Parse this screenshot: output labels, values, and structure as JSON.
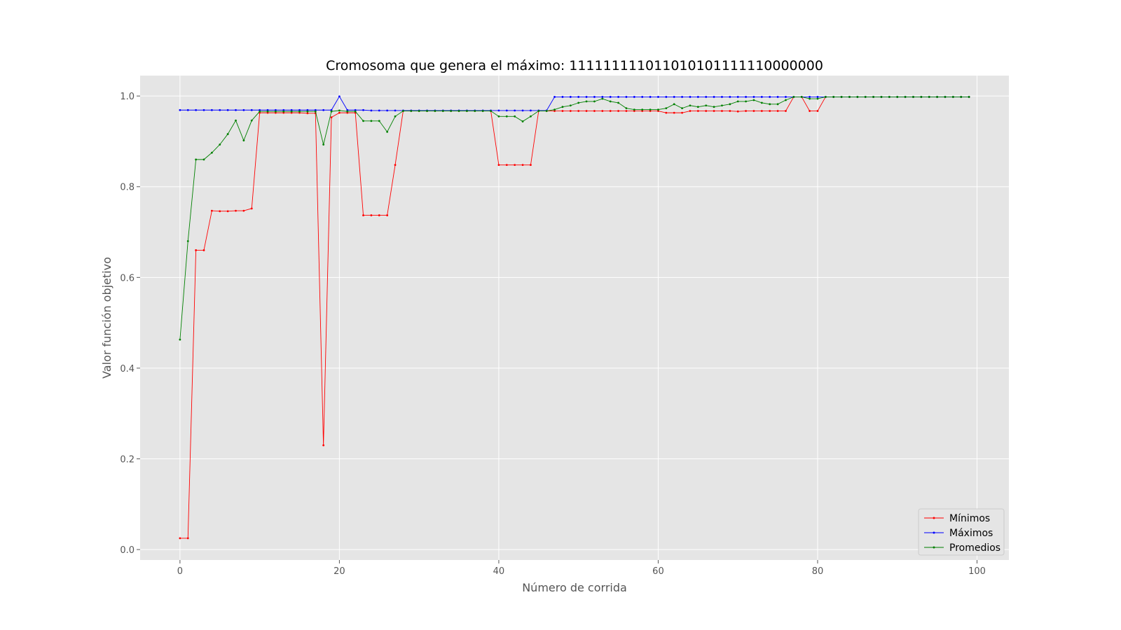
{
  "chart_data": {
    "type": "line",
    "title": "Cromosoma que genera el máximo: 111111111011010101111110000000",
    "xlabel": "Número de corrida",
    "ylabel": "Valor función objetivo",
    "xlim": [
      -5,
      104
    ],
    "ylim": [
      -0.023,
      1.045
    ],
    "x_ticks": [
      0,
      20,
      40,
      60,
      80,
      100
    ],
    "y_ticks": [
      0.0,
      0.2,
      0.4,
      0.6,
      0.8,
      1.0
    ],
    "x_tick_labels": [
      "0",
      "20",
      "40",
      "60",
      "80",
      "100"
    ],
    "y_tick_labels": [
      "0.0",
      "0.2",
      "0.4",
      "0.6",
      "0.8",
      "1.0"
    ],
    "grid": true,
    "legend_position": "bottom-right",
    "series": [
      {
        "name": "Mínimos",
        "color": "#ff0000",
        "values": [
          0.025,
          0.025,
          0.66,
          0.66,
          0.747,
          0.746,
          0.746,
          0.747,
          0.747,
          0.752,
          0.963,
          0.963,
          0.963,
          0.963,
          0.963,
          0.963,
          0.962,
          0.962,
          0.23,
          0.953,
          0.963,
          0.963,
          0.963,
          0.737,
          0.737,
          0.737,
          0.737,
          0.848,
          0.967,
          0.967,
          0.967,
          0.967,
          0.967,
          0.967,
          0.967,
          0.967,
          0.967,
          0.967,
          0.967,
          0.967,
          0.848,
          0.848,
          0.848,
          0.848,
          0.848,
          0.967,
          0.967,
          0.967,
          0.967,
          0.967,
          0.967,
          0.967,
          0.967,
          0.967,
          0.967,
          0.967,
          0.967,
          0.967,
          0.967,
          0.967,
          0.967,
          0.963,
          0.963,
          0.963,
          0.967,
          0.967,
          0.967,
          0.967,
          0.967,
          0.967,
          0.966,
          0.967,
          0.967,
          0.967,
          0.967,
          0.967,
          0.967,
          0.998,
          0.998,
          0.967,
          0.967,
          0.998,
          0.998,
          0.998,
          0.998,
          0.998,
          0.998,
          0.998,
          0.998,
          0.998,
          0.998,
          0.998,
          0.998,
          0.998,
          0.998,
          0.998,
          0.998,
          0.998,
          0.998,
          0.998
        ]
      },
      {
        "name": "Máximos",
        "color": "#0000ff",
        "values": [
          0.969,
          0.969,
          0.969,
          0.969,
          0.969,
          0.969,
          0.969,
          0.969,
          0.969,
          0.969,
          0.969,
          0.969,
          0.969,
          0.969,
          0.969,
          0.969,
          0.969,
          0.969,
          0.969,
          0.969,
          0.999,
          0.969,
          0.969,
          0.969,
          0.968,
          0.968,
          0.968,
          0.968,
          0.968,
          0.968,
          0.968,
          0.968,
          0.968,
          0.968,
          0.968,
          0.968,
          0.968,
          0.968,
          0.968,
          0.968,
          0.968,
          0.968,
          0.968,
          0.968,
          0.968,
          0.968,
          0.968,
          0.998,
          0.998,
          0.998,
          0.998,
          0.998,
          0.998,
          0.998,
          0.998,
          0.998,
          0.998,
          0.998,
          0.998,
          0.998,
          0.998,
          0.998,
          0.998,
          0.998,
          0.998,
          0.998,
          0.998,
          0.998,
          0.998,
          0.998,
          0.998,
          0.998,
          0.998,
          0.998,
          0.998,
          0.998,
          0.998,
          0.998,
          0.998,
          0.998,
          0.998,
          0.998,
          0.998,
          0.998,
          0.998,
          0.998,
          0.998,
          0.998,
          0.998,
          0.998,
          0.998,
          0.998,
          0.998,
          0.998,
          0.998,
          0.998,
          0.998,
          0.998,
          0.998,
          0.998
        ]
      },
      {
        "name": "Promedios",
        "color": "#008000",
        "values": [
          0.463,
          0.68,
          0.86,
          0.86,
          0.875,
          0.893,
          0.916,
          0.946,
          0.902,
          0.946,
          0.966,
          0.966,
          0.966,
          0.966,
          0.966,
          0.966,
          0.966,
          0.966,
          0.893,
          0.966,
          0.968,
          0.966,
          0.966,
          0.945,
          0.945,
          0.945,
          0.921,
          0.955,
          0.967,
          0.967,
          0.967,
          0.967,
          0.967,
          0.967,
          0.967,
          0.967,
          0.967,
          0.967,
          0.967,
          0.967,
          0.955,
          0.955,
          0.955,
          0.944,
          0.955,
          0.967,
          0.967,
          0.97,
          0.976,
          0.979,
          0.985,
          0.988,
          0.988,
          0.994,
          0.988,
          0.985,
          0.973,
          0.97,
          0.97,
          0.97,
          0.97,
          0.973,
          0.982,
          0.973,
          0.979,
          0.976,
          0.979,
          0.976,
          0.979,
          0.982,
          0.988,
          0.988,
          0.991,
          0.985,
          0.982,
          0.982,
          0.991,
          0.998,
          0.998,
          0.994,
          0.994,
          0.998,
          0.998,
          0.998,
          0.998,
          0.998,
          0.998,
          0.998,
          0.998,
          0.998,
          0.998,
          0.998,
          0.998,
          0.998,
          0.998,
          0.998,
          0.998,
          0.998,
          0.998,
          0.998
        ]
      }
    ]
  },
  "colors": {
    "plot_background": "#e5e5e5",
    "grid": "#ffffff",
    "tick_label": "#555555",
    "title": "#000000"
  }
}
